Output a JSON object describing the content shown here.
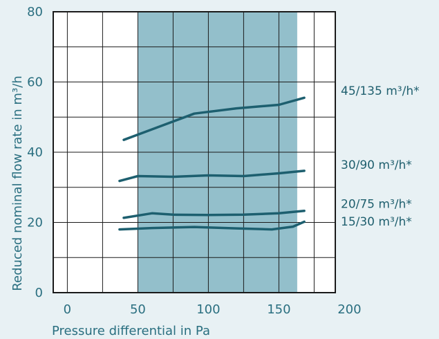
{
  "chart_data": {
    "type": "line",
    "xlabel": "Pressure differential in Pa",
    "ylabel": "Reduced nominal flow rate in m³/h",
    "xlim": [
      -10,
      190
    ],
    "ylim": [
      0,
      80
    ],
    "x_ticks": [
      0,
      50,
      100,
      150,
      200
    ],
    "y_ticks": [
      0,
      20,
      40,
      60,
      80
    ],
    "grid": true,
    "highlight_band": {
      "x_from": 50,
      "x_to": 163,
      "color": "#93bfcb"
    },
    "line_color": "#1d5f6f",
    "series": [
      {
        "name": "45/135 m³/h*",
        "points": [
          [
            40,
            43.5
          ],
          [
            60,
            46.5
          ],
          [
            80,
            49.5
          ],
          [
            90,
            51
          ],
          [
            120,
            52.5
          ],
          [
            150,
            53.5
          ],
          [
            168,
            55.5
          ]
        ]
      },
      {
        "name": "30/90 m³/h*",
        "points": [
          [
            37,
            31.8
          ],
          [
            50,
            33.2
          ],
          [
            75,
            33
          ],
          [
            100,
            33.4
          ],
          [
            125,
            33.2
          ],
          [
            150,
            34
          ],
          [
            168,
            34.7
          ]
        ]
      },
      {
        "name": "20/75 m³/h*",
        "points": [
          [
            40,
            21.3
          ],
          [
            60,
            22.6
          ],
          [
            75,
            22.2
          ],
          [
            100,
            22.1
          ],
          [
            125,
            22.2
          ],
          [
            150,
            22.6
          ],
          [
            168,
            23.3
          ]
        ]
      },
      {
        "name": "15/30 m³/h*",
        "points": [
          [
            37,
            18
          ],
          [
            60,
            18.4
          ],
          [
            90,
            18.7
          ],
          [
            120,
            18.3
          ],
          [
            145,
            18
          ],
          [
            160,
            18.8
          ],
          [
            168,
            20.2
          ]
        ]
      }
    ],
    "series_label_y": [
      57.5,
      36.5,
      25.3,
      20.3
    ]
  }
}
